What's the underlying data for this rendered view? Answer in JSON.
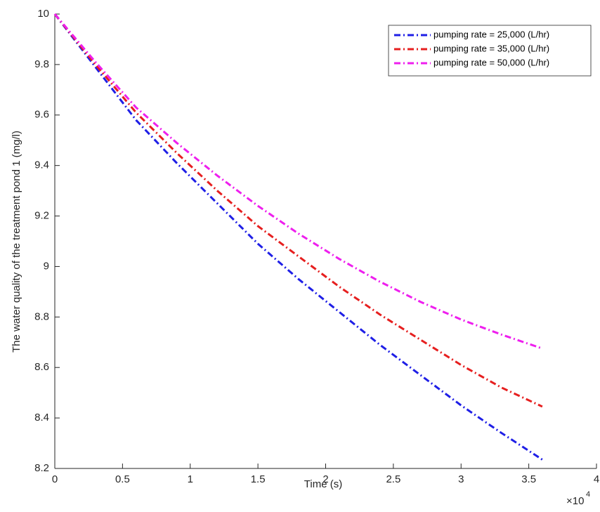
{
  "chart_data": {
    "type": "line",
    "x_label": "Time (s)",
    "y_label": "The water quality of the treatment pond 1 (mg/l)",
    "x_multiplier": "×10",
    "x_multiplier_exponent": "4",
    "x": [
      0,
      3000,
      6000,
      9000,
      12000,
      15000,
      18000,
      21000,
      24000,
      27000,
      30000,
      33000,
      36000
    ],
    "series": [
      {
        "name": "pumping rate = 25,000 (L/hr)",
        "color": "#1f1fe6",
        "values": [
          10,
          9.79,
          9.58,
          9.41,
          9.25,
          9.09,
          8.95,
          8.82,
          8.69,
          8.57,
          8.45,
          8.34,
          8.235
        ]
      },
      {
        "name": "pumping rate = 35,000 (L/hr)",
        "color": "#e61f1f",
        "values": [
          10,
          9.8,
          9.61,
          9.45,
          9.3,
          9.16,
          9.04,
          8.92,
          8.81,
          8.71,
          8.61,
          8.52,
          8.445
        ]
      },
      {
        "name": "pumping rate = 50,000 (L/hr)",
        "color": "#ee1fee",
        "values": [
          10,
          9.81,
          9.63,
          9.49,
          9.36,
          9.24,
          9.13,
          9.03,
          8.94,
          8.86,
          8.79,
          8.73,
          8.675
        ]
      }
    ],
    "xlim": [
      0,
      40000
    ],
    "xticks": [
      0,
      {
        "value": 5000,
        "label": "0.5"
      },
      {
        "value": 10000,
        "label": "1"
      },
      {
        "value": 15000,
        "label": "1.5"
      },
      {
        "value": 20000,
        "label": "2"
      },
      {
        "value": 25000,
        "label": "2.5"
      },
      {
        "value": 30000,
        "label": "3"
      },
      {
        "value": 35000,
        "label": "3.5"
      },
      {
        "value": 40000,
        "label": "4"
      }
    ],
    "ylim": [
      8.2,
      10
    ],
    "yticks": [
      8.2,
      8.4,
      8.6,
      8.8,
      9,
      9.2,
      9.4,
      9.6,
      9.8,
      10
    ],
    "grid": false,
    "legend": "top-right"
  }
}
